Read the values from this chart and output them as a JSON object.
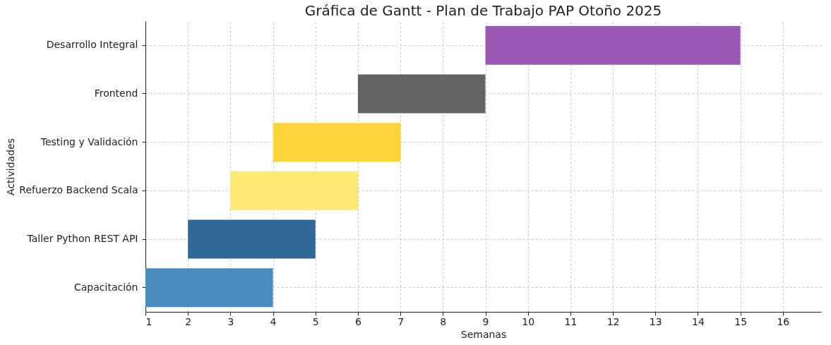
{
  "chart_data": {
    "type": "bar",
    "orientation": "horizontal",
    "title": "Gráfica de Gantt - Plan de Trabajo PAP Otoño 2025",
    "xlabel": "Semanas",
    "ylabel": "Actividades",
    "categories": [
      "Desarrollo Integral",
      "Frontend",
      "Testing y Validación",
      "Refuerzo Backend Scala",
      "Taller Python REST API",
      "Capacitación"
    ],
    "base": [
      9,
      6,
      4,
      3,
      2,
      1
    ],
    "values": [
      6,
      3,
      3,
      3,
      3,
      3
    ],
    "colors": [
      "#9b59b6",
      "#646464",
      "#ffd43b",
      "#ffe873",
      "#306998",
      "#4b8bbe"
    ],
    "xlim": [
      1,
      16.9
    ],
    "xticks": [
      1,
      2,
      3,
      4,
      5,
      6,
      7,
      8,
      9,
      10,
      11,
      12,
      13,
      14,
      15,
      16
    ],
    "grid": true
  }
}
